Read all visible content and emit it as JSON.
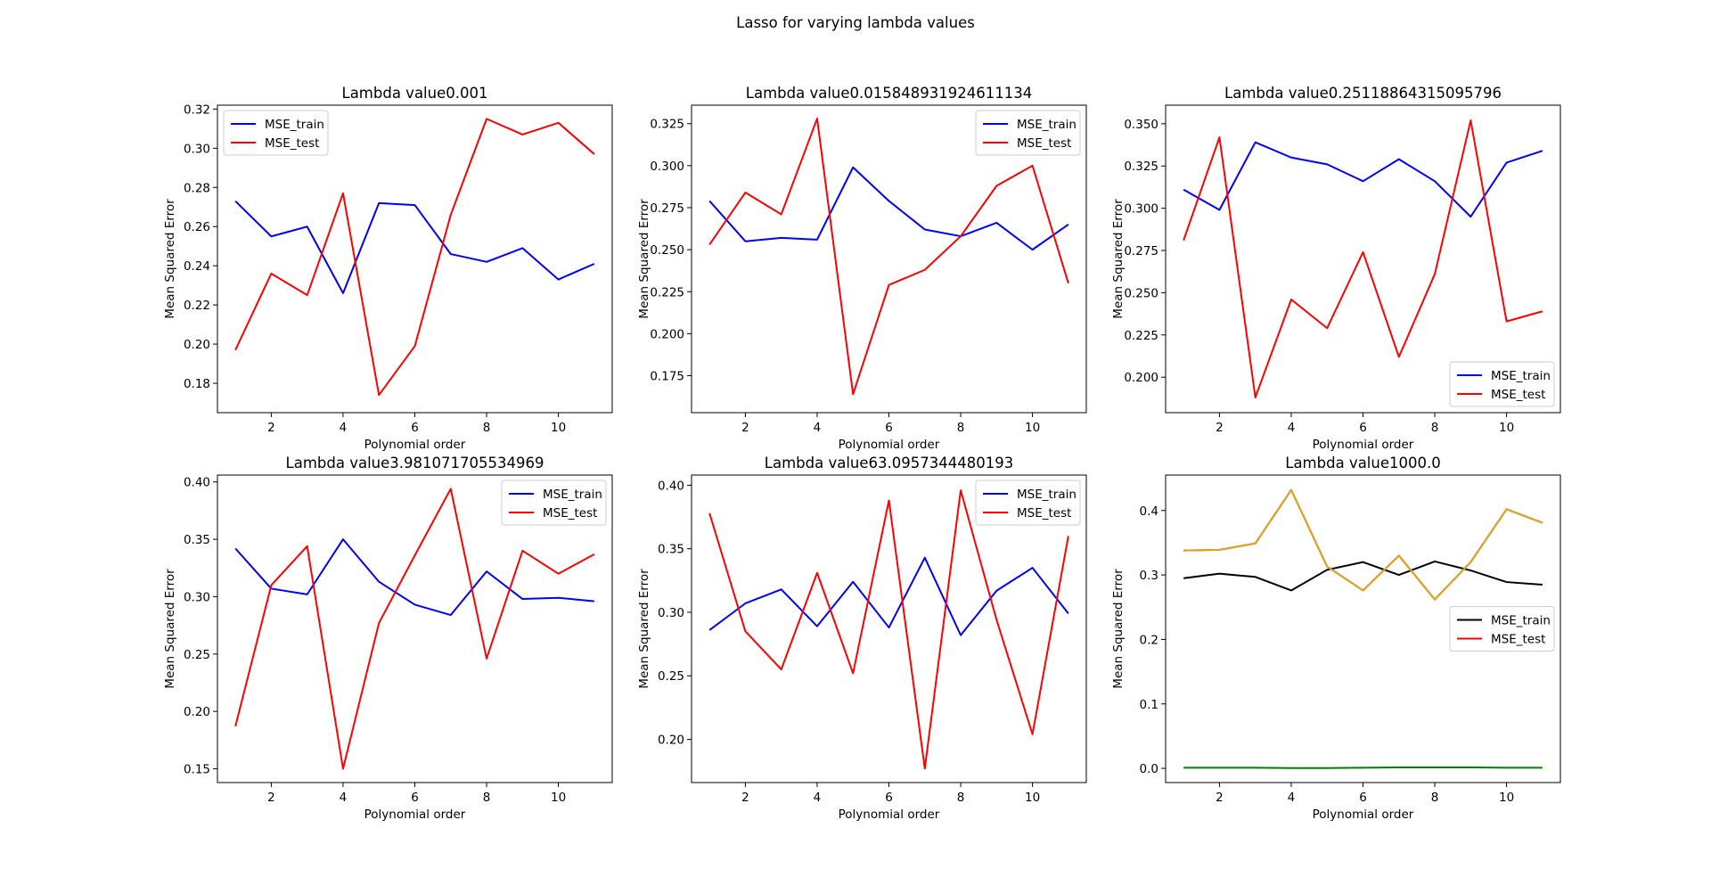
{
  "figure": {
    "suptitle": "Lasso for varying lambda values"
  },
  "colors": {
    "train": "#0000ff",
    "test": "#ff0000",
    "train_alt": "#000000",
    "extra_green": "#008000",
    "extra_gold": "#daa520"
  },
  "chart_data": [
    {
      "type": "line",
      "title": "Lambda value0.001",
      "xlabel": "Polynomial order",
      "ylabel": "Mean Squared Error",
      "xlim": [
        0.5,
        11.5
      ],
      "ylim": [
        0.165,
        0.322
      ],
      "xticks": [
        2,
        4,
        6,
        8,
        10
      ],
      "yticks": [
        0.18,
        0.2,
        0.22,
        0.24,
        0.26,
        0.28,
        0.3,
        0.32
      ],
      "ytick_labels": [
        "0.18",
        "0.20",
        "0.22",
        "0.24",
        "0.26",
        "0.28",
        "0.30",
        "0.32"
      ],
      "legend": "upper left",
      "x": [
        1,
        2,
        3,
        4,
        5,
        6,
        7,
        8,
        9,
        10,
        11
      ],
      "series": [
        {
          "name": "MSE_train",
          "color": "#0000ff",
          "values": [
            0.273,
            0.255,
            0.26,
            0.226,
            0.272,
            0.271,
            0.246,
            0.242,
            0.249,
            0.233,
            0.241
          ]
        },
        {
          "name": "MSE_test",
          "color": "#ff0000",
          "values": [
            0.197,
            0.236,
            0.225,
            0.277,
            0.174,
            0.199,
            0.266,
            0.315,
            0.307,
            0.313,
            0.297
          ]
        }
      ]
    },
    {
      "type": "line",
      "title": "Lambda value0.015848931924611134",
      "xlabel": "Polynomial order",
      "ylabel": "Mean Squared Error",
      "xlim": [
        0.5,
        11.5
      ],
      "ylim": [
        0.153,
        0.336
      ],
      "xticks": [
        2,
        4,
        6,
        8,
        10
      ],
      "yticks": [
        0.175,
        0.2,
        0.225,
        0.25,
        0.275,
        0.3,
        0.325
      ],
      "ytick_labels": [
        "0.175",
        "0.200",
        "0.225",
        "0.250",
        "0.275",
        "0.300",
        "0.325"
      ],
      "legend": "upper right",
      "x": [
        1,
        2,
        3,
        4,
        5,
        6,
        7,
        8,
        9,
        10,
        11
      ],
      "series": [
        {
          "name": "MSE_train",
          "color": "#0000ff",
          "values": [
            0.279,
            0.255,
            0.257,
            0.256,
            0.299,
            0.279,
            0.262,
            0.258,
            0.266,
            0.25,
            0.265
          ]
        },
        {
          "name": "MSE_test",
          "color": "#ff0000",
          "values": [
            0.253,
            0.284,
            0.271,
            0.328,
            0.164,
            0.229,
            0.238,
            0.258,
            0.288,
            0.3,
            0.23
          ]
        }
      ]
    },
    {
      "type": "line",
      "title": "Lambda value0.25118864315095796",
      "xlabel": "Polynomial order",
      "ylabel": "Mean Squared Error",
      "xlim": [
        0.5,
        11.5
      ],
      "ylim": [
        0.179,
        0.361
      ],
      "xticks": [
        2,
        4,
        6,
        8,
        10
      ],
      "yticks": [
        0.2,
        0.225,
        0.25,
        0.275,
        0.3,
        0.325,
        0.35
      ],
      "ytick_labels": [
        "0.200",
        "0.225",
        "0.250",
        "0.275",
        "0.300",
        "0.325",
        "0.350"
      ],
      "legend": "lower right",
      "x": [
        1,
        2,
        3,
        4,
        5,
        6,
        7,
        8,
        9,
        10,
        11
      ],
      "series": [
        {
          "name": "MSE_train",
          "color": "#0000ff",
          "values": [
            0.311,
            0.299,
            0.339,
            0.33,
            0.326,
            0.316,
            0.329,
            0.316,
            0.295,
            0.327,
            0.334
          ]
        },
        {
          "name": "MSE_test",
          "color": "#ff0000",
          "values": [
            0.281,
            0.342,
            0.188,
            0.246,
            0.229,
            0.274,
            0.212,
            0.261,
            0.352,
            0.233,
            0.239
          ]
        }
      ]
    },
    {
      "type": "line",
      "title": "Lambda value3.981071705534969",
      "xlabel": "Polynomial order",
      "ylabel": "Mean Squared Error",
      "xlim": [
        0.5,
        11.5
      ],
      "ylim": [
        0.138,
        0.406
      ],
      "xticks": [
        2,
        4,
        6,
        8,
        10
      ],
      "yticks": [
        0.15,
        0.2,
        0.25,
        0.3,
        0.35,
        0.4
      ],
      "ytick_labels": [
        "0.15",
        "0.20",
        "0.25",
        "0.30",
        "0.35",
        "0.40"
      ],
      "legend": "upper right",
      "x": [
        1,
        2,
        3,
        4,
        5,
        6,
        7,
        8,
        9,
        10,
        11
      ],
      "series": [
        {
          "name": "MSE_train",
          "color": "#0000ff",
          "values": [
            0.342,
            0.307,
            0.302,
            0.35,
            0.313,
            0.293,
            0.284,
            0.322,
            0.298,
            0.299,
            0.296
          ]
        },
        {
          "name": "MSE_test",
          "color": "#ff0000",
          "values": [
            0.187,
            0.31,
            0.344,
            0.15,
            0.277,
            0.336,
            0.394,
            0.246,
            0.34,
            0.32,
            0.337
          ]
        }
      ]
    },
    {
      "type": "line",
      "title": "Lambda value63.0957344480193",
      "xlabel": "Polynomial order",
      "ylabel": "Mean Squared Error",
      "xlim": [
        0.5,
        11.5
      ],
      "ylim": [
        0.166,
        0.408
      ],
      "xticks": [
        2,
        4,
        6,
        8,
        10
      ],
      "yticks": [
        0.2,
        0.25,
        0.3,
        0.35,
        0.4
      ],
      "ytick_labels": [
        "0.20",
        "0.25",
        "0.30",
        "0.35",
        "0.40"
      ],
      "legend": "upper right",
      "x": [
        1,
        2,
        3,
        4,
        5,
        6,
        7,
        8,
        9,
        10,
        11
      ],
      "series": [
        {
          "name": "MSE_train",
          "color": "#0000ff",
          "values": [
            0.286,
            0.307,
            0.318,
            0.289,
            0.324,
            0.288,
            0.343,
            0.282,
            0.317,
            0.335,
            0.299
          ]
        },
        {
          "name": "MSE_test",
          "color": "#ff0000",
          "values": [
            0.378,
            0.285,
            0.255,
            0.331,
            0.252,
            0.388,
            0.177,
            0.396,
            0.294,
            0.204,
            0.36
          ]
        }
      ]
    },
    {
      "type": "line",
      "title": "Lambda value1000.0",
      "xlabel": "Polynomial order",
      "ylabel": "Mean Squared Error",
      "xlim": [
        0.5,
        11.5
      ],
      "ylim": [
        -0.022,
        0.455
      ],
      "xticks": [
        2,
        4,
        6,
        8,
        10
      ],
      "yticks": [
        0.0,
        0.1,
        0.2,
        0.3,
        0.4
      ],
      "ytick_labels": [
        "0.0",
        "0.1",
        "0.2",
        "0.3",
        "0.4"
      ],
      "legend": "center right",
      "x": [
        1,
        2,
        3,
        4,
        5,
        6,
        7,
        8,
        9,
        10,
        11
      ],
      "series": [
        {
          "name": "MSE_train",
          "color": "#000000",
          "values": [
            0.295,
            0.302,
            0.297,
            0.276,
            0.308,
            0.32,
            0.3,
            0.321,
            0.307,
            0.289,
            0.285
          ]
        },
        {
          "name": "MSE_test",
          "color": "#ff0000",
          "values": [
            0.338,
            0.339,
            0.349,
            0.432,
            0.313,
            0.276,
            0.33,
            0.262,
            0.32,
            0.402,
            0.381
          ]
        },
        {
          "color": "#008000",
          "values": [
            0.001,
            0.001,
            0.001,
            0.0005,
            0.0005,
            0.001,
            0.0015,
            0.0015,
            0.0015,
            0.001,
            0.001
          ]
        },
        {
          "color": "#daa520",
          "values": [
            0.338,
            0.339,
            0.349,
            0.432,
            0.313,
            0.276,
            0.33,
            0.262,
            0.32,
            0.402,
            0.381
          ]
        }
      ],
      "legend_entries": [
        "MSE_train",
        "MSE_test"
      ]
    }
  ]
}
